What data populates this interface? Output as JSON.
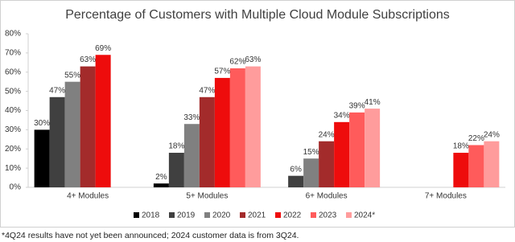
{
  "chart_data": {
    "type": "bar",
    "title": "Percentage of Customers with Multiple Cloud Module Subscriptions",
    "categories": [
      "4+ Modules",
      "5+ Modules",
      "6+ Modules",
      "7+ Modules"
    ],
    "series": [
      {
        "name": "2018",
        "color": "#000000",
        "values": [
          30,
          2,
          null,
          null
        ],
        "value_labels": [
          "30%",
          "2%",
          null,
          null
        ]
      },
      {
        "name": "2019",
        "color": "#404040",
        "values": [
          47,
          18,
          6,
          null
        ],
        "value_labels": [
          "47%",
          "18%",
          "6%",
          null
        ]
      },
      {
        "name": "2020",
        "color": "#808080",
        "values": [
          55,
          33,
          15,
          null
        ],
        "value_labels": [
          "55%",
          "33%",
          "15%",
          null
        ]
      },
      {
        "name": "2021",
        "color": "#a32b2b",
        "values": [
          63,
          47,
          24,
          null
        ],
        "value_labels": [
          "63%",
          "47%",
          "24%",
          null
        ]
      },
      {
        "name": "2022",
        "color": "#ee0c0c",
        "values": [
          69,
          57,
          34,
          18
        ],
        "value_labels": [
          "69%",
          "57%",
          "34%",
          "18%"
        ]
      },
      {
        "name": "2023",
        "color": "#ff5b5b",
        "values": [
          null,
          62,
          39,
          22
        ],
        "value_labels": [
          null,
          "62%",
          "39%",
          "22%"
        ]
      },
      {
        "name": "2024*",
        "color": "#ff9c9c",
        "values": [
          null,
          63,
          41,
          24
        ],
        "value_labels": [
          null,
          "63%",
          "41%",
          "24%"
        ]
      }
    ],
    "ylim": [
      0,
      80
    ],
    "yticks": [
      {
        "value": 0,
        "label": "0%"
      },
      {
        "value": 10,
        "label": "10%"
      },
      {
        "value": 20,
        "label": "20%"
      },
      {
        "value": 30,
        "label": "30%"
      },
      {
        "value": 40,
        "label": "40%"
      },
      {
        "value": 50,
        "label": "50%"
      },
      {
        "value": 60,
        "label": "60%"
      },
      {
        "value": 70,
        "label": "70%"
      },
      {
        "value": 80,
        "label": "80%"
      }
    ],
    "legend": "bottom",
    "footnote": "*4Q24 results have not yet been announced; 2024 customer data is from 3Q24."
  }
}
